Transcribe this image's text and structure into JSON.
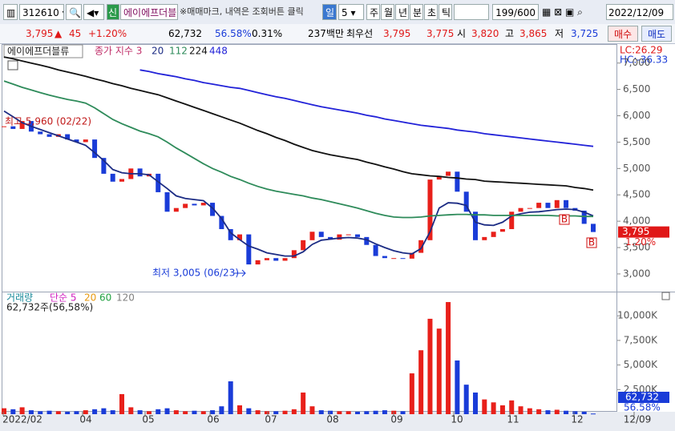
{
  "toolbar": {
    "code": "312610",
    "name": "에이에프더블",
    "notice": "※매매마크, 내역은 조회버튼 클릭",
    "period": "일",
    "interval": "5",
    "periods": [
      "주",
      "월",
      "년",
      "분",
      "초",
      "틱"
    ],
    "count": "199/600",
    "date": "2022/12/09"
  },
  "quote": {
    "price": "3,795",
    "arrow": "▲",
    "change": "45",
    "change_rate": "+1.20%",
    "volume": "62,732",
    "volume_ratio": "56.58%",
    "turnover": "0.31%",
    "amount": "237백만",
    "best_label": "최우선",
    "ask": "3,795",
    "bid": "3,775",
    "open_label": "시",
    "open": "3,820",
    "high_label": "고",
    "high": "3,865",
    "low_label": "저",
    "low": "3,725",
    "buy": "매수",
    "sell": "매도"
  },
  "chart_data": [
    {
      "type": "candle",
      "title": "에이에프더블류",
      "lc": "LC:26.29",
      "hc": "HC:-36.33",
      "ylim": [
        2695,
        7345
      ],
      "yticks": [
        {
          "value": 3000,
          "label": "3,000"
        },
        {
          "value": 3500,
          "label": "3,500"
        },
        {
          "value": 4000,
          "label": "4,000"
        },
        {
          "value": 4500,
          "label": "4,500"
        },
        {
          "value": 5000,
          "label": "5,000"
        },
        {
          "value": 5500,
          "label": "5,500"
        },
        {
          "value": 6000,
          "label": "6,000"
        },
        {
          "value": 6500,
          "label": "6,500"
        },
        {
          "value": 7000,
          "label": "7,000"
        }
      ],
      "annotations": [
        "최고 5,960 (02/22)",
        "최저 3,005 (06/23)",
        "B",
        "B"
      ],
      "last_label": "3,795",
      "last_change": "1.20%",
      "series": [
        {
          "name": "종가 지수 3",
          "type": "candle",
          "color": "#e8201a",
          "down_color": "#1a3cd8",
          "values": [
            5800,
            5750,
            5900,
            5700,
            5650,
            5600,
            5650,
            5550,
            5500,
            5550,
            5200,
            4900,
            4750,
            4800,
            5000,
            4850,
            4900,
            4550,
            4180,
            4250,
            4330,
            4300,
            4350,
            4100,
            3850,
            3640,
            3750,
            3180,
            3260,
            3300,
            3250,
            3300,
            3450,
            3640,
            3800,
            3700,
            3650,
            3750,
            3750,
            3700,
            3550,
            3340,
            3300,
            3300,
            3290,
            3400,
            3640,
            4790,
            4860,
            4940,
            4560,
            4180,
            3640,
            3700,
            3800,
            3850,
            4180,
            4250,
            4250,
            4350,
            4250,
            4400,
            4250,
            4200,
            3950,
            3795
          ]
        },
        {
          "name": "20",
          "type": "line",
          "color": "#1c2c84",
          "values": [
            6090,
            5980,
            5870,
            5800,
            5740,
            5680,
            5620,
            5560,
            5500,
            5440,
            5300,
            5150,
            4980,
            4920,
            4900,
            4900,
            4880,
            4750,
            4620,
            4480,
            4430,
            4410,
            4390,
            4250,
            4050,
            3780,
            3650,
            3530,
            3470,
            3400,
            3370,
            3340,
            3340,
            3420,
            3560,
            3640,
            3660,
            3680,
            3690,
            3680,
            3650,
            3570,
            3500,
            3440,
            3400,
            3380,
            3480,
            3800,
            4250,
            4350,
            4340,
            4300,
            3980,
            3930,
            3920,
            3980,
            4100,
            4140,
            4170,
            4180,
            4200,
            4220,
            4230,
            4220,
            4170,
            4100
          ]
        },
        {
          "name": "112",
          "type": "line",
          "color": "#2e8b5a",
          "values": [
            6660,
            6600,
            6540,
            6490,
            6440,
            6390,
            6350,
            6310,
            6280,
            6240,
            6150,
            6040,
            5930,
            5850,
            5780,
            5710,
            5660,
            5600,
            5500,
            5390,
            5290,
            5190,
            5090,
            5000,
            4930,
            4850,
            4790,
            4720,
            4660,
            4610,
            4570,
            4540,
            4510,
            4480,
            4440,
            4410,
            4370,
            4330,
            4290,
            4250,
            4200,
            4150,
            4110,
            4080,
            4070,
            4070,
            4080,
            4100,
            4110,
            4120,
            4130,
            4130,
            4120,
            4120,
            4110,
            4110,
            4110,
            4110,
            4110,
            4110,
            4110,
            4100,
            4100,
            4100,
            4090,
            4090
          ]
        },
        {
          "name": "224",
          "type": "line",
          "color": "#111111",
          "values": [
            7115,
            7080,
            7040,
            7000,
            6960,
            6920,
            6870,
            6830,
            6790,
            6750,
            6700,
            6660,
            6610,
            6570,
            6520,
            6480,
            6440,
            6400,
            6340,
            6280,
            6220,
            6160,
            6100,
            6040,
            5980,
            5920,
            5860,
            5790,
            5720,
            5660,
            5590,
            5530,
            5460,
            5400,
            5340,
            5300,
            5260,
            5230,
            5200,
            5170,
            5120,
            5080,
            5030,
            4990,
            4940,
            4900,
            4880,
            4860,
            4850,
            4830,
            4820,
            4800,
            4790,
            4760,
            4750,
            4740,
            4730,
            4720,
            4710,
            4700,
            4690,
            4680,
            4670,
            4640,
            4620,
            4590
          ]
        },
        {
          "name": "448",
          "type": "line",
          "color": "#2222d8",
          "values": [
            null,
            null,
            null,
            null,
            null,
            null,
            null,
            null,
            null,
            null,
            null,
            null,
            null,
            null,
            null,
            6870,
            6840,
            6800,
            6770,
            6740,
            6700,
            6670,
            6630,
            6600,
            6570,
            6540,
            6520,
            6480,
            6440,
            6400,
            6360,
            6330,
            6290,
            6250,
            6210,
            6170,
            6140,
            6110,
            6080,
            6050,
            6010,
            5980,
            5940,
            5910,
            5880,
            5850,
            5820,
            5800,
            5780,
            5760,
            5730,
            5710,
            5690,
            5660,
            5640,
            5620,
            5600,
            5580,
            5560,
            5540,
            5520,
            5500,
            5480,
            5460,
            5440,
            5420
          ]
        }
      ]
    },
    {
      "type": "bar",
      "title": "거래량",
      "summary": "62,732주(56,58%)",
      "legend": [
        {
          "name": "단순 5",
          "color": "#d020c0"
        },
        {
          "name": "20",
          "color": "#e89a10"
        },
        {
          "name": "60",
          "color": "#20a040"
        },
        {
          "name": "120",
          "color": "#808080"
        }
      ],
      "ylim": [
        0,
        12300
      ],
      "yticks": [
        {
          "value": 2500,
          "label": "2,500K"
        },
        {
          "value": 5000,
          "label": "5,000K"
        },
        {
          "value": 7500,
          "label": "7,500K"
        },
        {
          "value": 10000,
          "label": "10,000K"
        }
      ],
      "last_label": "62,732",
      "last_ratio": "56.58%",
      "xtick_labels": [
        "2022/02",
        "04",
        "05",
        "06",
        "07",
        "08",
        "09",
        "10",
        "11",
        "12",
        "12/09"
      ],
      "values": [
        600,
        500,
        700,
        400,
        300,
        350,
        300,
        250,
        300,
        400,
        500,
        600,
        400,
        2040,
        700,
        400,
        300,
        500,
        600,
        400,
        300,
        350,
        300,
        400,
        800,
        3340,
        900,
        600,
        400,
        300,
        300,
        350,
        500,
        2200,
        800,
        400,
        350,
        300,
        300,
        250,
        300,
        350,
        400,
        350,
        300,
        4150,
        6500,
        9700,
        8700,
        11400,
        5460,
        3000,
        2200,
        1500,
        1200,
        900,
        1400,
        800,
        600,
        500,
        400,
        450,
        350,
        300,
        250,
        63
      ]
    }
  ]
}
